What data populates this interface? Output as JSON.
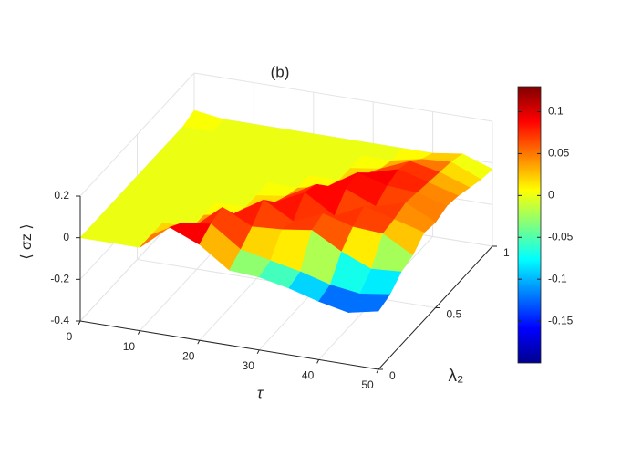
{
  "chart_data": {
    "type": "surface",
    "title": "(b)",
    "x_label": "τ",
    "y_label": "λ₂",
    "z_label": "⟨ σz ⟩",
    "x": [
      0,
      5,
      10,
      15,
      20,
      25,
      30,
      35,
      40,
      45,
      50
    ],
    "y": [
      0,
      0.1,
      0.2,
      0.3,
      0.4,
      0.5,
      0.6,
      0.7,
      0.8,
      0.9,
      1
    ],
    "z": [
      [
        0,
        0,
        0,
        0.12,
        0.06,
        -0.04,
        -0.05,
        -0.08,
        -0.12,
        -0.15,
        -0.12
      ],
      [
        0,
        0,
        0,
        0.08,
        0.1,
        0,
        -0.03,
        -0.06,
        -0.1,
        -0.12,
        -0.1
      ],
      [
        0,
        0,
        0,
        0,
        0.12,
        0.05,
        0.06,
        0.08,
        0,
        -0.06,
        -0.05
      ],
      [
        0,
        0,
        0,
        0,
        0.03,
        0.12,
        0.04,
        0.1,
        0.06,
        0.05,
        -0.03
      ],
      [
        0,
        0,
        0,
        0,
        0,
        0.05,
        0.12,
        0.03,
        0.1,
        0.06,
        0.02
      ],
      [
        0,
        0,
        0,
        0,
        0,
        0.02,
        0.1,
        0.1,
        0.04,
        0.08,
        0.01
      ],
      [
        0,
        0,
        0,
        0,
        0,
        0,
        0.03,
        0.12,
        0.08,
        0.07,
        0.03
      ],
      [
        0,
        0,
        0,
        0,
        0,
        0,
        0,
        0.06,
        0.1,
        0.06,
        0.02
      ],
      [
        0,
        0,
        0,
        0,
        0,
        0,
        0,
        0.02,
        0.08,
        0.05,
        0
      ],
      [
        0,
        0,
        0,
        0,
        0,
        0,
        0,
        0,
        0.03,
        0.04,
        -0.02
      ],
      [
        0.02,
        0,
        0,
        0,
        0,
        0,
        0,
        0,
        0,
        0.02,
        -0.03
      ]
    ],
    "xlim": [
      0,
      50
    ],
    "xticks": [
      0,
      10,
      20,
      30,
      40,
      50
    ],
    "ylim": [
      0,
      1
    ],
    "yticks": [
      0,
      0.5,
      1
    ],
    "zlim": [
      -0.4,
      0.2
    ],
    "zticks": [
      -0.4,
      -0.2,
      0,
      0.2
    ],
    "clim": [
      -0.2,
      0.13
    ],
    "cticks": [
      -0.15,
      -0.1,
      -0.05,
      0,
      0.05,
      0.1
    ],
    "colormap": "jet",
    "grid": true
  }
}
